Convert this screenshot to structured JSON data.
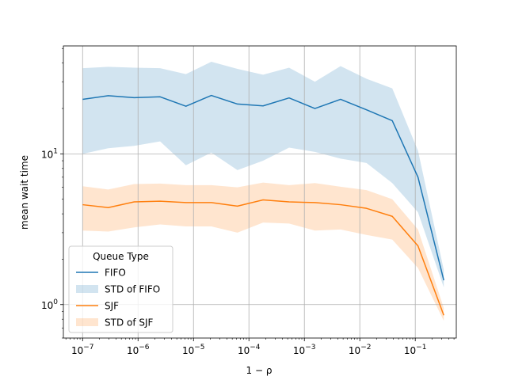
{
  "chart_data": {
    "type": "line",
    "title": "",
    "xlabel": "1 − ρ",
    "ylabel": "mean wait time",
    "xscale": "log",
    "yscale": "log",
    "xlim": [
      4.5e-08,
      0.55
    ],
    "ylim": [
      0.6,
      52
    ],
    "grid": true,
    "legend": {
      "title": "Queue Type",
      "placement": "lower-left"
    },
    "x_ticks": [
      {
        "value": 1e-07,
        "base": "10",
        "exp": "−7"
      },
      {
        "value": 1e-06,
        "base": "10",
        "exp": "−6"
      },
      {
        "value": 1e-05,
        "base": "10",
        "exp": "−5"
      },
      {
        "value": 0.0001,
        "base": "10",
        "exp": "−4"
      },
      {
        "value": 0.001,
        "base": "10",
        "exp": "−3"
      },
      {
        "value": 0.01,
        "base": "10",
        "exp": "−2"
      },
      {
        "value": 0.1,
        "base": "10",
        "exp": "−1"
      }
    ],
    "y_ticks": [
      {
        "value": 1,
        "base": "10",
        "exp": "0"
      },
      {
        "value": 10,
        "base": "10",
        "exp": "1"
      }
    ],
    "x": [
      1e-07,
      2.9e-07,
      8.5e-07,
      2.5e-06,
      7.3e-06,
      2.1e-05,
      6.2e-05,
      0.00018,
      0.00053,
      0.00155,
      0.0045,
      0.0132,
      0.0385,
      0.112,
      0.327
    ],
    "series": [
      {
        "name": "FIFO",
        "color": "#1f77b4",
        "values": [
          23,
          24.3,
          23.6,
          23.9,
          20.7,
          24.4,
          21.4,
          20.8,
          23.5,
          20,
          23,
          19.6,
          16.6,
          7,
          1.45
        ],
        "band_name": "STD of FIFO",
        "band_color": "#1f77b4",
        "lower": [
          10,
          10.9,
          11.3,
          12.1,
          8.4,
          10.2,
          7.8,
          9,
          11,
          10.3,
          9.3,
          8.7,
          6.4,
          4.1,
          1.3
        ],
        "upper": [
          37,
          37.8,
          37.3,
          37,
          33.8,
          40.8,
          36.6,
          33.5,
          37.3,
          30.1,
          38.2,
          31.5,
          27.2,
          10.5,
          1.7
        ]
      },
      {
        "name": "SJF",
        "color": "#ff7f0e",
        "values": [
          4.6,
          4.4,
          4.8,
          4.85,
          4.75,
          4.75,
          4.5,
          4.95,
          4.8,
          4.75,
          4.6,
          4.35,
          3.85,
          2.45,
          0.85
        ],
        "band_name": "STD of SJF",
        "band_color": "#ff7f0e",
        "lower": [
          3.1,
          3.05,
          3.25,
          3.4,
          3.3,
          3.3,
          3.0,
          3.5,
          3.45,
          3.1,
          3.15,
          2.9,
          2.7,
          1.75,
          0.78
        ],
        "upper": [
          6.1,
          5.8,
          6.3,
          6.35,
          6.2,
          6.2,
          6.0,
          6.45,
          6.2,
          6.4,
          6.05,
          5.75,
          5.0,
          3.15,
          0.95
        ]
      }
    ]
  }
}
